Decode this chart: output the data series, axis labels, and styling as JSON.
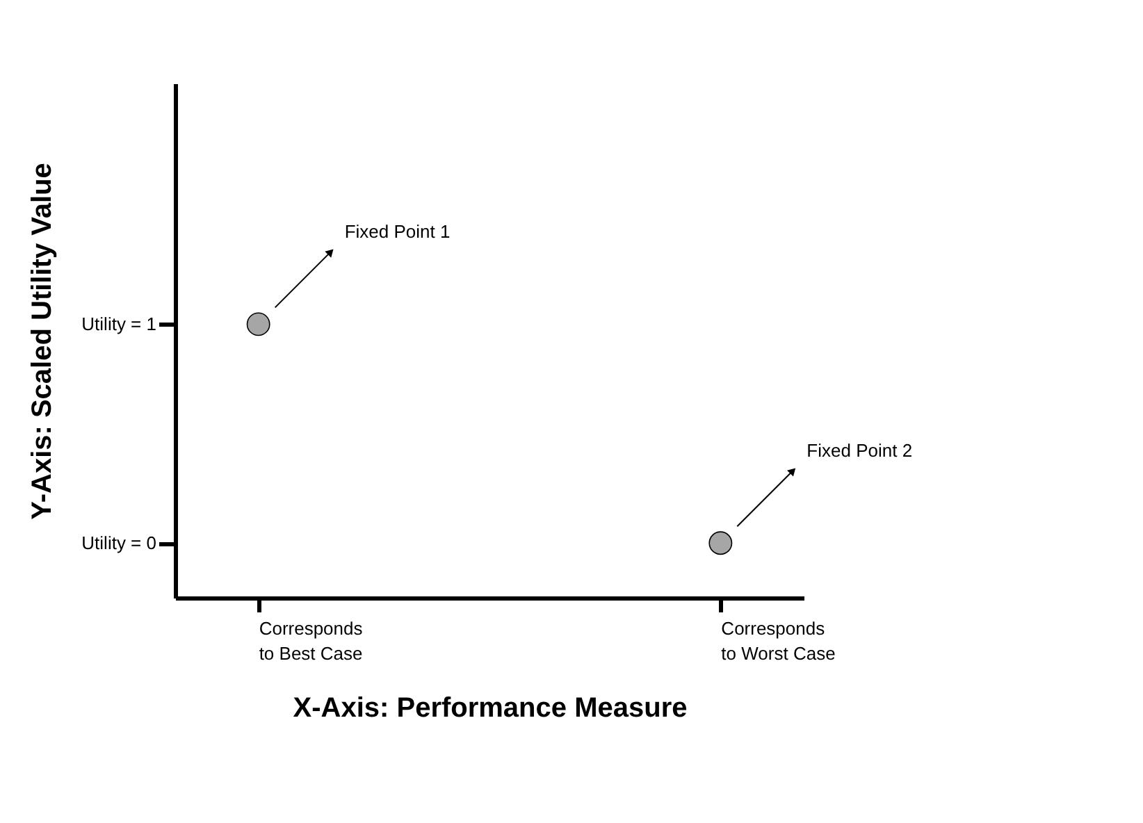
{
  "chart_data": {
    "type": "scatter",
    "xlabel": "X-Axis: Performance Measure",
    "ylabel": "Y-Axis: Scaled Utility Value",
    "categories": [
      "Corresponds to Best Case",
      "Corresponds to Worst Case"
    ],
    "series": [
      {
        "color": "#a6a6a6",
        "values": [
          1,
          0
        ]
      }
    ],
    "ylim": [
      -0.25,
      2.1
    ],
    "yticks": [
      {
        "value": 0,
        "label": "Utility = 0"
      },
      {
        "value": 1,
        "label": "Utility = 1"
      }
    ],
    "marker": "circle",
    "annotations": [
      "Fixed Point 1",
      "Fixed Point 2"
    ]
  }
}
